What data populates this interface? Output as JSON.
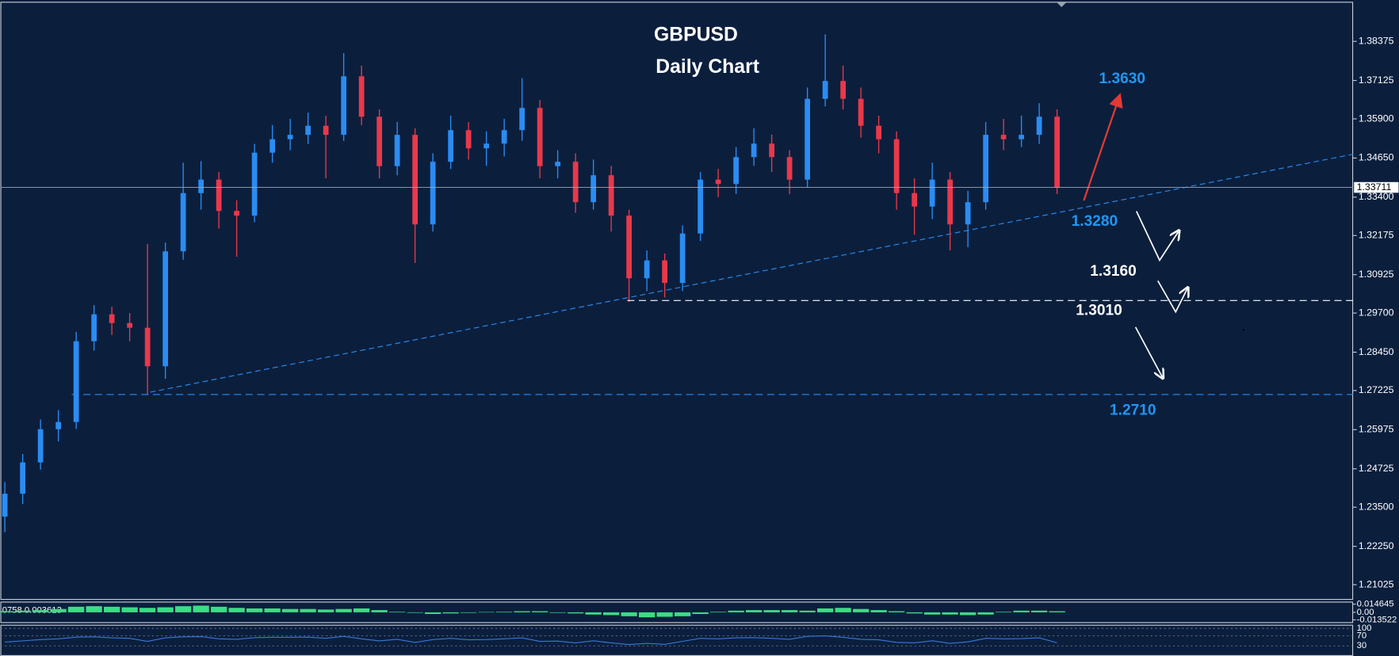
{
  "chart_data": {
    "type": "candlestick",
    "title": "GBPUSD",
    "subtitle": "Daily Chart",
    "up_color": "#2b8cf2",
    "down_color": "#e8394b",
    "open": [
      1.232,
      1.2393,
      1.2493,
      1.2599,
      1.2622,
      1.288,
      1.2966,
      1.2938,
      1.2923,
      1.28,
      1.3167,
      1.3353,
      1.3396,
      1.3296,
      1.3281,
      1.3482,
      1.3525,
      1.3539,
      1.3568,
      1.3539,
      1.3726,
      1.3597,
      1.3439,
      1.3539,
      1.3253,
      1.3453,
      1.3554,
      1.3496,
      1.3511,
      1.3554,
      1.3625,
      1.3439,
      1.3453,
      1.3324,
      1.341,
      1.3281,
      1.3081,
      1.3138,
      1.3066,
      1.3224,
      1.3396,
      1.3382,
      1.3468,
      1.3511,
      1.3468,
      1.3396,
      1.3654,
      1.3711,
      1.3654,
      1.3568,
      1.3525,
      1.3353,
      1.331,
      1.3396,
      1.3253,
      1.3324,
      1.3539,
      1.3525,
      1.3539,
      1.3597
    ],
    "high": [
      1.243,
      1.252,
      1.263,
      1.266,
      1.291,
      1.2995,
      1.299,
      1.297,
      1.319,
      1.3195,
      1.345,
      1.3455,
      1.342,
      1.333,
      1.351,
      1.357,
      1.359,
      1.361,
      1.36,
      1.38,
      1.376,
      1.362,
      1.358,
      1.356,
      1.348,
      1.36,
      1.358,
      1.355,
      1.359,
      1.372,
      1.365,
      1.349,
      1.348,
      1.346,
      1.344,
      1.33,
      1.317,
      1.316,
      1.325,
      1.342,
      1.343,
      1.35,
      1.356,
      1.354,
      1.349,
      1.369,
      1.386,
      1.376,
      1.369,
      1.36,
      1.355,
      1.34,
      1.345,
      1.342,
      1.336,
      1.358,
      1.359,
      1.36,
      1.364,
      1.362
    ],
    "low": [
      1.227,
      1.236,
      1.247,
      1.256,
      1.26,
      1.285,
      1.29,
      1.288,
      1.2708,
      1.276,
      1.314,
      1.33,
      1.324,
      1.315,
      1.326,
      1.345,
      1.349,
      1.351,
      1.34,
      1.352,
      1.357,
      1.34,
      1.341,
      1.313,
      1.323,
      1.343,
      1.346,
      1.344,
      1.347,
      1.352,
      1.34,
      1.34,
      1.329,
      1.33,
      1.323,
      1.3005,
      1.304,
      1.302,
      1.304,
      1.32,
      1.334,
      1.335,
      1.344,
      1.342,
      1.335,
      1.337,
      1.363,
      1.362,
      1.353,
      1.348,
      1.33,
      1.322,
      1.327,
      1.317,
      1.318,
      1.33,
      1.349,
      1.35,
      1.351,
      1.335
    ],
    "close": [
      1.2393,
      1.2493,
      1.2599,
      1.2622,
      1.288,
      1.2966,
      1.2938,
      1.2923,
      1.28,
      1.3167,
      1.3353,
      1.3396,
      1.3296,
      1.3281,
      1.3482,
      1.3525,
      1.3539,
      1.3568,
      1.3539,
      1.3726,
      1.3597,
      1.3439,
      1.3539,
      1.3253,
      1.3453,
      1.3554,
      1.3496,
      1.3511,
      1.3554,
      1.3625,
      1.3439,
      1.3453,
      1.3324,
      1.341,
      1.3281,
      1.3081,
      1.3138,
      1.3066,
      1.3224,
      1.3396,
      1.3382,
      1.3468,
      1.3511,
      1.3468,
      1.3396,
      1.3654,
      1.3711,
      1.3654,
      1.3568,
      1.3525,
      1.3353,
      1.331,
      1.3396,
      1.3253,
      1.3324,
      1.3539,
      1.3525,
      1.3539,
      1.3597,
      1.3371
    ],
    "ylim": [
      1.2057,
      1.3961
    ],
    "yticks": [
      1.38375,
      1.37125,
      {
        "value": 1.359,
        "label": "1.35900"
      },
      {
        "value": 1.3465,
        "label": "1.34650"
      },
      {
        "value": 1.334,
        "label": "1.33400"
      },
      1.32175,
      1.30925,
      {
        "value": 1.297,
        "label": "1.29700"
      },
      {
        "value": 1.2845,
        "label": "1.28450"
      },
      1.27225,
      1.25975,
      1.24725,
      {
        "value": 1.235,
        "label": "1.23500"
      },
      {
        "value": 1.2225,
        "label": "1.22250"
      },
      1.21025
    ],
    "last_price": 1.33711,
    "levels": [
      {
        "value": 1.363,
        "label": "1.3630",
        "color": "#2196f3"
      },
      {
        "value": 1.328,
        "label": "1.3280",
        "color": "#2196f3"
      },
      {
        "value": 1.316,
        "label": "1.3160",
        "color": "#ffffff"
      },
      {
        "value": 1.301,
        "label": "1.3010",
        "color": "#ffffff",
        "dashed_line": true
      },
      {
        "value": 1.271,
        "label": "1.2710",
        "color": "#2196f3",
        "dashed_line": true
      }
    ],
    "macd": {
      "label": "0758 0.003613",
      "color": "#3ddc84",
      "ylim": [
        -0.016,
        0.016
      ],
      "yticks": [
        0.014645,
        {
          "value": 0,
          "label": "0.00"
        },
        -0.013522
      ],
      "values": [
        0.002,
        0.003,
        0.004,
        0.006,
        0.01,
        0.011,
        0.01,
        0.009,
        0.008,
        0.009,
        0.011,
        0.012,
        0.01,
        0.008,
        0.007,
        0.007,
        0.006,
        0.006,
        0.005,
        0.006,
        0.007,
        0.004,
        0.001,
        -0.001,
        -0.003,
        -0.002,
        -0.001,
        0.0005,
        0.001,
        0.002,
        0.002,
        -0.001,
        -0.002,
        -0.004,
        -0.005,
        -0.007,
        -0.009,
        -0.008,
        -0.007,
        -0.003,
        0.001,
        0.003,
        0.004,
        0.004,
        0.004,
        0.003,
        0.007,
        0.008,
        0.006,
        0.004,
        0.002,
        -0.002,
        -0.004,
        -0.004,
        -0.005,
        -0.004,
        0.001,
        0.003,
        0.003,
        0.002
      ]
    },
    "rsi": {
      "color": "#3a78d6",
      "ylim": [
        0,
        100
      ],
      "yticks": [
        100,
        70,
        30
      ],
      "values": [
        45,
        50,
        55,
        58,
        65,
        66,
        62,
        60,
        48,
        62,
        66,
        67,
        58,
        56,
        63,
        64,
        64,
        65,
        60,
        68,
        58,
        50,
        56,
        44,
        55,
        60,
        54,
        55,
        58,
        62,
        48,
        49,
        42,
        50,
        42,
        35,
        40,
        36,
        48,
        60,
        58,
        62,
        63,
        60,
        56,
        68,
        70,
        64,
        56,
        54,
        44,
        42,
        50,
        40,
        46,
        60,
        58,
        59,
        62,
        42
      ]
    }
  }
}
